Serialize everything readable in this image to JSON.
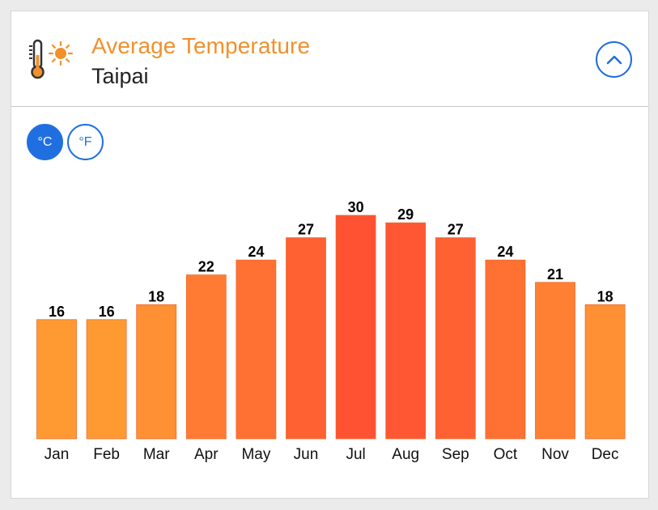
{
  "header": {
    "title": "Average Temperature",
    "subtitle": "Taipai",
    "icon": "thermometer-sun-icon",
    "collapse_icon": "chevron-up-icon"
  },
  "units": {
    "celsius_label": "°C",
    "fahrenheit_label": "°F",
    "selected": "°C"
  },
  "colors": {
    "title": "#f0912c",
    "accent": "#1f6fe0",
    "bar_cool": "#ff9a33",
    "bar_warm": "#ff5233"
  },
  "chart_data": {
    "type": "bar",
    "categories": [
      "Jan",
      "Feb",
      "Mar",
      "Apr",
      "May",
      "Jun",
      "Jul",
      "Aug",
      "Sep",
      "Oct",
      "Nov",
      "Dec"
    ],
    "values": [
      16,
      16,
      18,
      22,
      24,
      27,
      30,
      29,
      27,
      24,
      21,
      18
    ],
    "title": "Average Temperature",
    "xlabel": "",
    "ylabel": "",
    "ylim": [
      0,
      30
    ],
    "grid": false,
    "legend": "none",
    "data_labels": true
  }
}
